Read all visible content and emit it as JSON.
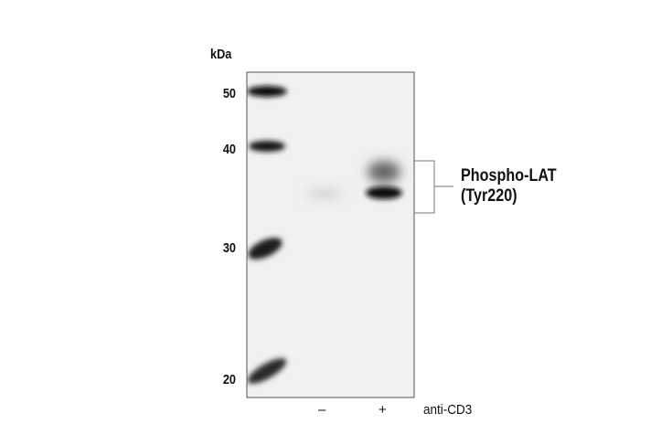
{
  "axis_unit": "kDa",
  "markers": [
    {
      "label": "50",
      "kda": 50
    },
    {
      "label": "40",
      "kda": 40
    },
    {
      "label": "30",
      "kda": 30
    },
    {
      "label": "20",
      "kda": 20
    }
  ],
  "lanes": [
    {
      "label": "–",
      "treatment": "minus"
    },
    {
      "label": "+",
      "treatment": "plus"
    }
  ],
  "treatment_label": "anti-CD3",
  "band_label": {
    "line1": "Phospho-LAT",
    "line2": "(Tyr220)"
  },
  "colors": {
    "band": "#111111",
    "membrane": "#f1f1f1",
    "border": "#555555"
  }
}
